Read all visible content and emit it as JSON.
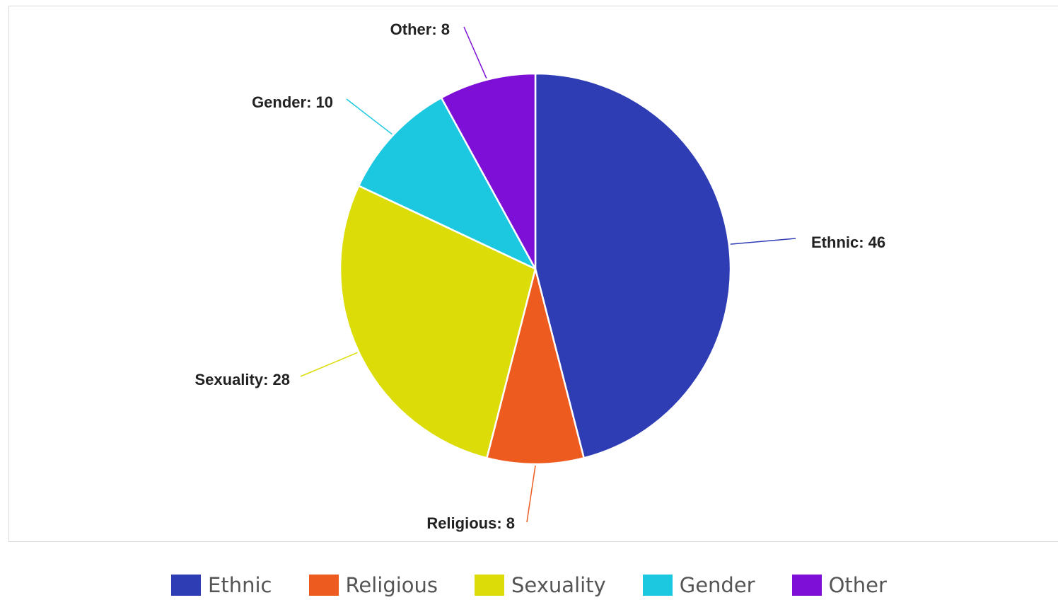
{
  "chart_data": {
    "type": "pie",
    "categories": [
      "Ethnic",
      "Religious",
      "Sexuality",
      "Gender",
      "Other"
    ],
    "values": [
      46,
      8,
      28,
      10,
      8
    ],
    "colors": [
      "#2f3db5",
      "#ee5b1f",
      "#dcdd08",
      "#1bc8e0",
      "#7e0fd6"
    ],
    "labels": [
      "Ethnic: 46",
      "Religious: 8",
      "Sexuality: 28",
      "Gender: 10",
      "Other: 8"
    ],
    "start_angle": "12 o'clock",
    "direction": "clockwise",
    "legend_position": "bottom"
  }
}
